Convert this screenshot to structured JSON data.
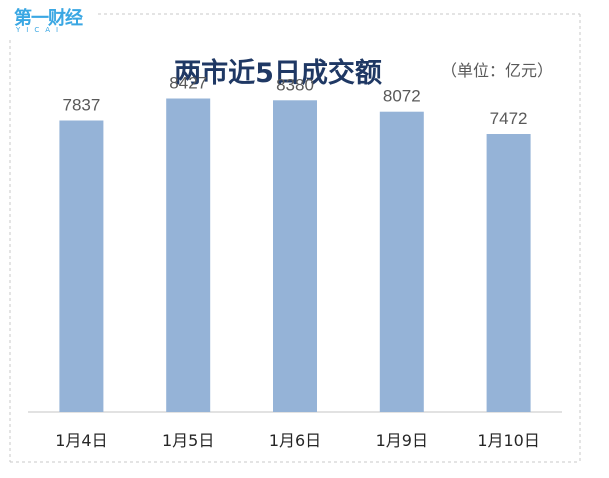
{
  "logo": {
    "text": "第一财经",
    "sub": "YICAI"
  },
  "unit_note": "（单位：亿元）",
  "colors": {
    "bar": "#95b3d7",
    "axis": "#d9d9d9",
    "frame": "#c8c8c8",
    "label": "#595959",
    "title": "#1f3864",
    "logo": "#3aa7e3"
  },
  "chart_data": {
    "type": "bar",
    "title": "两市近5日成交额",
    "xlabel": "",
    "ylabel": "",
    "categories": [
      "1月4日",
      "1月5日",
      "1月6日",
      "1月9日",
      "1月10日"
    ],
    "values": [
      7837,
      8427,
      8380,
      8072,
      7472
    ],
    "ylim": [
      0,
      10000
    ],
    "grid": false,
    "legend": "none"
  }
}
